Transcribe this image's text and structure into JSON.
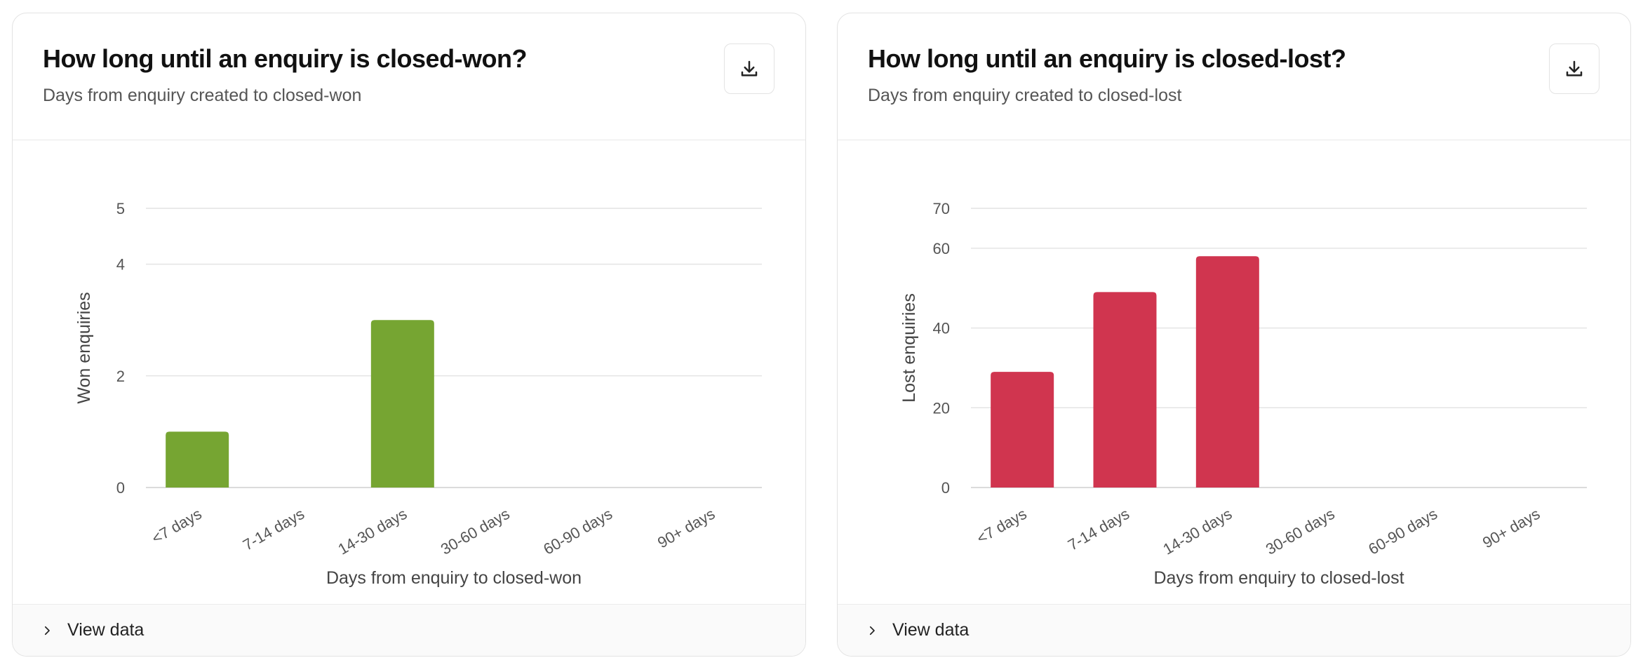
{
  "cards": [
    {
      "title": "How long until an enquiry is closed-won?",
      "subtitle": "Days from enquiry created to closed-won",
      "download_icon": "download-icon",
      "footer_label": "View data",
      "footer_icon": "chevron-right-icon"
    },
    {
      "title": "How long until an enquiry is closed-lost?",
      "subtitle": "Days from enquiry created to closed-lost",
      "download_icon": "download-icon",
      "footer_label": "View data",
      "footer_icon": "chevron-right-icon"
    }
  ],
  "chart_data": [
    {
      "type": "bar",
      "categories": [
        "<7 days",
        "7-14 days",
        "14-30 days",
        "30-60 days",
        "60-90 days",
        "90+ days"
      ],
      "values": [
        1,
        0,
        3,
        0,
        0,
        0
      ],
      "xlabel": "Days from enquiry to closed-won",
      "ylabel": "Won enquiries",
      "ylim": [
        0,
        5
      ],
      "yticks": [
        0,
        2,
        4,
        5
      ],
      "bar_color": "#76a532",
      "grid": true
    },
    {
      "type": "bar",
      "categories": [
        "<7 days",
        "7-14 days",
        "14-30 days",
        "30-60 days",
        "60-90 days",
        "90+ days"
      ],
      "values": [
        29,
        49,
        58,
        0,
        0,
        0
      ],
      "xlabel": "Days from enquiry to closed-lost",
      "ylabel": "Lost enquiries",
      "ylim": [
        0,
        70
      ],
      "yticks": [
        0,
        20,
        40,
        60,
        70
      ],
      "bar_color": "#d0354f",
      "grid": true
    }
  ]
}
